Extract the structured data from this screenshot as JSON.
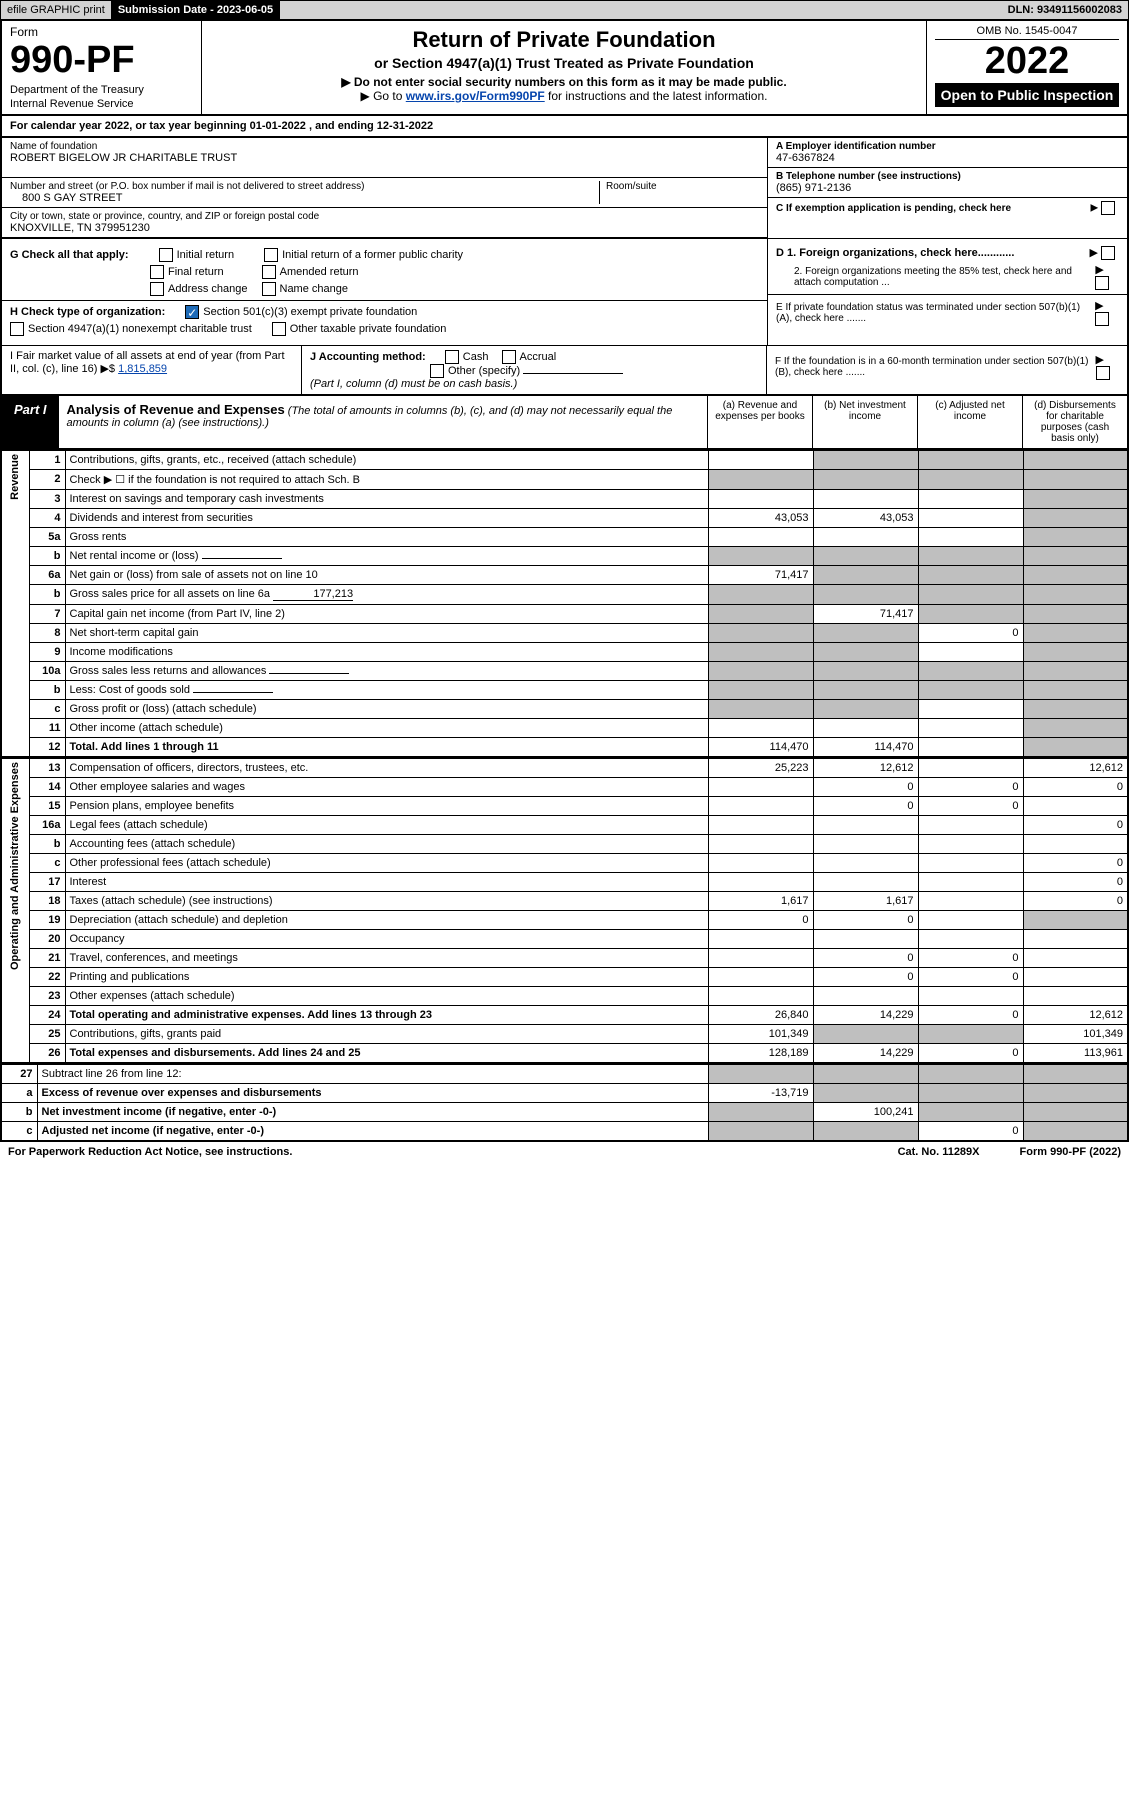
{
  "topbar": {
    "efile": "efile GRAPHIC print",
    "submission": "Submission Date - 2023-06-05",
    "dln": "DLN: 93491156002083"
  },
  "header": {
    "form_label": "Form",
    "form_number": "990-PF",
    "dept": "Department of the Treasury",
    "irs": "Internal Revenue Service",
    "title": "Return of Private Foundation",
    "subtitle": "or Section 4947(a)(1) Trust Treated as Private Foundation",
    "note1": "▶ Do not enter social security numbers on this form as it may be made public.",
    "note2_pre": "▶ Go to ",
    "note2_link": "www.irs.gov/Form990PF",
    "note2_post": " for instructions and the latest information.",
    "omb": "OMB No. 1545-0047",
    "year": "2022",
    "open": "Open to Public Inspection"
  },
  "calyear": "For calendar year 2022, or tax year beginning 01-01-2022                        , and ending 12-31-2022",
  "ident": {
    "name_label": "Name of foundation",
    "name": "ROBERT BIGELOW JR CHARITABLE TRUST",
    "addr_label": "Number and street (or P.O. box number if mail is not delivered to street address)",
    "addr": "800 S GAY STREET",
    "room_label": "Room/suite",
    "room": "",
    "city_label": "City or town, state or province, country, and ZIP or foreign postal code",
    "city": "KNOXVILLE, TN  379951230",
    "a_label": "A Employer identification number",
    "a_val": "47-6367824",
    "b_label": "B Telephone number (see instructions)",
    "b_val": "(865) 971-2136",
    "c_label": "C If exemption application is pending, check here"
  },
  "g": {
    "label": "G Check all that apply:",
    "initial": "Initial return",
    "final": "Final return",
    "address": "Address change",
    "initial_former": "Initial return of a former public charity",
    "amended": "Amended return",
    "name_change": "Name change"
  },
  "h": {
    "label": "H Check type of organization:",
    "501c3": "Section 501(c)(3) exempt private foundation",
    "4947": "Section 4947(a)(1) nonexempt charitable trust",
    "other": "Other taxable private foundation"
  },
  "d": {
    "d1": "D 1. Foreign organizations, check here............",
    "d2": "2. Foreign organizations meeting the 85% test, check here and attach computation ...",
    "e": "E  If private foundation status was terminated under section 507(b)(1)(A), check here .......",
    "f": "F  If the foundation is in a 60-month termination under section 507(b)(1)(B), check here ......."
  },
  "i": {
    "label": "I Fair market value of all assets at end of year (from Part II, col. (c), line 16) ▶$ ",
    "val": "1,815,859"
  },
  "j": {
    "label": "J Accounting method:",
    "cash": "Cash",
    "accrual": "Accrual",
    "other": "Other (specify)",
    "note": "(Part I, column (d) must be on cash basis.)"
  },
  "part1": {
    "badge": "Part I",
    "title": "Analysis of Revenue and Expenses",
    "title_note": " (The total of amounts in columns (b), (c), and (d) may not necessarily equal the amounts in column (a) (see instructions).)",
    "col_a": "(a)   Revenue and expenses per books",
    "col_b": "(b)   Net investment income",
    "col_c": "(c)   Adjusted net income",
    "col_d": "(d)   Disbursements for charitable purposes (cash basis only)"
  },
  "side": {
    "rev": "Revenue",
    "ope": "Operating and Administrative Expenses"
  },
  "lines": [
    {
      "n": "1",
      "d": "Contributions, gifts, grants, etc., received (attach schedule)",
      "a": "",
      "b": "g",
      "c": "g",
      "dd": "g"
    },
    {
      "n": "2",
      "d": "Check ▶ ☐ if the foundation is not required to attach Sch. B",
      "a": "g",
      "b": "g",
      "c": "g",
      "dd": "g"
    },
    {
      "n": "3",
      "d": "Interest on savings and temporary cash investments",
      "a": "",
      "b": "",
      "c": "",
      "dd": "g"
    },
    {
      "n": "4",
      "d": "Dividends and interest from securities",
      "a": "43,053",
      "b": "43,053",
      "c": "",
      "dd": "g"
    },
    {
      "n": "5a",
      "d": "Gross rents",
      "a": "",
      "b": "",
      "c": "",
      "dd": "g"
    },
    {
      "n": "b",
      "d": "Net rental income or (loss)",
      "a": "g",
      "b": "g",
      "c": "g",
      "dd": "g",
      "inline": true
    },
    {
      "n": "6a",
      "d": "Net gain or (loss) from sale of assets not on line 10",
      "a": "71,417",
      "b": "g",
      "c": "g",
      "dd": "g"
    },
    {
      "n": "b",
      "d": "Gross sales price for all assets on line 6a",
      "a": "g",
      "b": "g",
      "c": "g",
      "dd": "g",
      "inline": true,
      "inlinev": "177,213"
    },
    {
      "n": "7",
      "d": "Capital gain net income (from Part IV, line 2)",
      "a": "g",
      "b": "71,417",
      "c": "g",
      "dd": "g"
    },
    {
      "n": "8",
      "d": "Net short-term capital gain",
      "a": "g",
      "b": "g",
      "c": "0",
      "dd": "g"
    },
    {
      "n": "9",
      "d": "Income modifications",
      "a": "g",
      "b": "g",
      "c": "",
      "dd": "g"
    },
    {
      "n": "10a",
      "d": "Gross sales less returns and allowances",
      "a": "g",
      "b": "g",
      "c": "g",
      "dd": "g",
      "inline": true
    },
    {
      "n": "b",
      "d": "Less: Cost of goods sold",
      "a": "g",
      "b": "g",
      "c": "g",
      "dd": "g",
      "inline": true
    },
    {
      "n": "c",
      "d": "Gross profit or (loss) (attach schedule)",
      "a": "g",
      "b": "g",
      "c": "",
      "dd": "g"
    },
    {
      "n": "11",
      "d": "Other income (attach schedule)",
      "a": "",
      "b": "",
      "c": "",
      "dd": "g"
    },
    {
      "n": "12",
      "d": "Total. Add lines 1 through 11",
      "a": "114,470",
      "b": "114,470",
      "c": "",
      "dd": "g",
      "bold": true
    }
  ],
  "lines2": [
    {
      "n": "13",
      "d": "Compensation of officers, directors, trustees, etc.",
      "a": "25,223",
      "b": "12,612",
      "c": "",
      "dd": "12,612"
    },
    {
      "n": "14",
      "d": "Other employee salaries and wages",
      "a": "",
      "b": "0",
      "c": "0",
      "dd": "0"
    },
    {
      "n": "15",
      "d": "Pension plans, employee benefits",
      "a": "",
      "b": "0",
      "c": "0",
      "dd": ""
    },
    {
      "n": "16a",
      "d": "Legal fees (attach schedule)",
      "a": "",
      "b": "",
      "c": "",
      "dd": "0"
    },
    {
      "n": "b",
      "d": "Accounting fees (attach schedule)",
      "a": "",
      "b": "",
      "c": "",
      "dd": ""
    },
    {
      "n": "c",
      "d": "Other professional fees (attach schedule)",
      "a": "",
      "b": "",
      "c": "",
      "dd": "0"
    },
    {
      "n": "17",
      "d": "Interest",
      "a": "",
      "b": "",
      "c": "",
      "dd": "0"
    },
    {
      "n": "18",
      "d": "Taxes (attach schedule) (see instructions)",
      "a": "1,617",
      "b": "1,617",
      "c": "",
      "dd": "0"
    },
    {
      "n": "19",
      "d": "Depreciation (attach schedule) and depletion",
      "a": "0",
      "b": "0",
      "c": "",
      "dd": "g"
    },
    {
      "n": "20",
      "d": "Occupancy",
      "a": "",
      "b": "",
      "c": "",
      "dd": ""
    },
    {
      "n": "21",
      "d": "Travel, conferences, and meetings",
      "a": "",
      "b": "0",
      "c": "0",
      "dd": ""
    },
    {
      "n": "22",
      "d": "Printing and publications",
      "a": "",
      "b": "0",
      "c": "0",
      "dd": ""
    },
    {
      "n": "23",
      "d": "Other expenses (attach schedule)",
      "a": "",
      "b": "",
      "c": "",
      "dd": ""
    },
    {
      "n": "24",
      "d": "Total operating and administrative expenses. Add lines 13 through 23",
      "a": "26,840",
      "b": "14,229",
      "c": "0",
      "dd": "12,612",
      "bold": true
    },
    {
      "n": "25",
      "d": "Contributions, gifts, grants paid",
      "a": "101,349",
      "b": "g",
      "c": "g",
      "dd": "101,349"
    },
    {
      "n": "26",
      "d": "Total expenses and disbursements. Add lines 24 and 25",
      "a": "128,189",
      "b": "14,229",
      "c": "0",
      "dd": "113,961",
      "bold": true
    }
  ],
  "lines3": [
    {
      "n": "27",
      "d": "Subtract line 26 from line 12:",
      "a": "g",
      "b": "g",
      "c": "g",
      "dd": "g"
    },
    {
      "n": "a",
      "d": "Excess of revenue over expenses and disbursements",
      "a": "-13,719",
      "b": "g",
      "c": "g",
      "dd": "g",
      "bold": true
    },
    {
      "n": "b",
      "d": "Net investment income (if negative, enter -0-)",
      "a": "g",
      "b": "100,241",
      "c": "g",
      "dd": "g",
      "bold": true
    },
    {
      "n": "c",
      "d": "Adjusted net income (if negative, enter -0-)",
      "a": "g",
      "b": "g",
      "c": "0",
      "dd": "g",
      "bold": true
    }
  ],
  "footer": {
    "left": "For Paperwork Reduction Act Notice, see instructions.",
    "mid": "Cat. No. 11289X",
    "right": "Form 990-PF (2022)"
  },
  "colors": {
    "grey": "#bfbfbf",
    "topgrey": "#d3d3d3",
    "black": "#000000",
    "blue": "#1e6bb8",
    "link": "#0645ad"
  }
}
